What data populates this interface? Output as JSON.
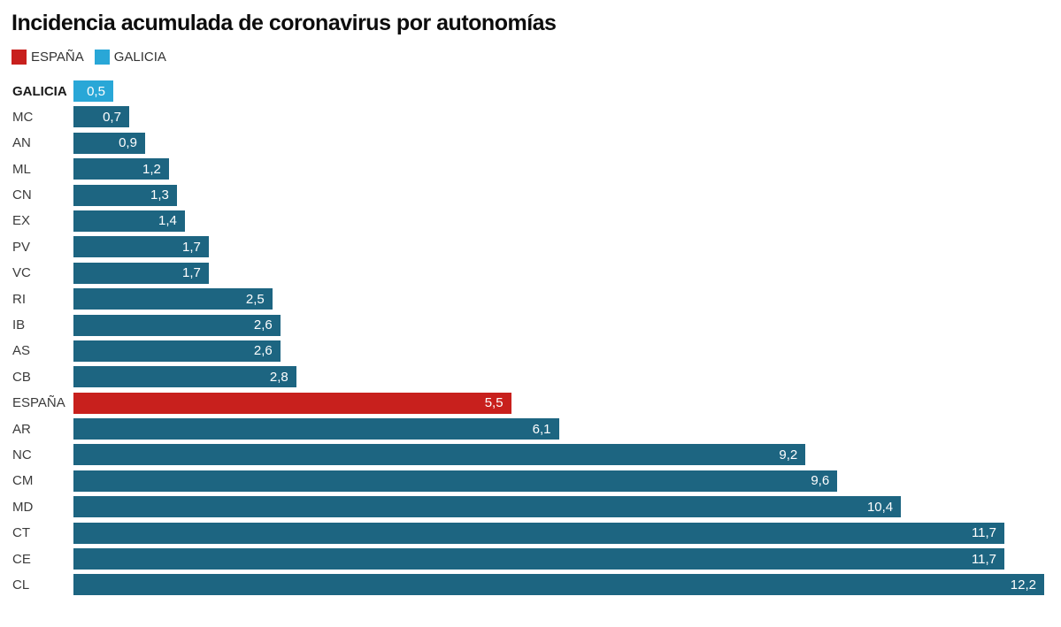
{
  "legend": {
    "items": [
      {
        "label": "ESPAÑA",
        "color": "#c8201d"
      },
      {
        "label": "GALICIA",
        "color": "#29a7d7"
      }
    ]
  },
  "colors": {
    "default_bar": "#1d6581",
    "espana_bar": "#c8201d",
    "galicia_bar": "#29a7d7",
    "title_text": "#0d0d0d",
    "axis_label_text": "#3b3b3b",
    "value_text": "#ffffff"
  },
  "chart_data": {
    "type": "bar",
    "orientation": "horizontal",
    "title": "Incidencia acumulada de coronavirus por autonomías",
    "xlabel": "",
    "ylabel": "",
    "xlim": [
      0,
      12.2
    ],
    "grid": false,
    "legend_position": "top-left",
    "categories": [
      "GALICIA",
      "MC",
      "AN",
      "ML",
      "CN",
      "EX",
      "PV",
      "VC",
      "RI",
      "IB",
      "AS",
      "CB",
      "ESPAÑA",
      "AR",
      "NC",
      "CM",
      "MD",
      "CT",
      "CE",
      "CL"
    ],
    "values": [
      0.5,
      0.7,
      0.9,
      1.2,
      1.3,
      1.4,
      1.7,
      1.7,
      2.5,
      2.6,
      2.6,
      2.8,
      5.5,
      6.1,
      9.2,
      9.6,
      10.4,
      11.7,
      11.7,
      12.2
    ],
    "value_labels": [
      "0,5",
      "0,7",
      "0,9",
      "1,2",
      "1,3",
      "1,4",
      "1,7",
      "1,7",
      "2,5",
      "2,6",
      "2,6",
      "2,8",
      "5,5",
      "6,1",
      "9,2",
      "9,6",
      "10,4",
      "11,7",
      "11,7",
      "12,2"
    ],
    "bar_colors": [
      "#29a7d7",
      "#1d6581",
      "#1d6581",
      "#1d6581",
      "#1d6581",
      "#1d6581",
      "#1d6581",
      "#1d6581",
      "#1d6581",
      "#1d6581",
      "#1d6581",
      "#1d6581",
      "#c8201d",
      "#1d6581",
      "#1d6581",
      "#1d6581",
      "#1d6581",
      "#1d6581",
      "#1d6581",
      "#1d6581"
    ],
    "bold_categories": [
      "GALICIA"
    ]
  }
}
